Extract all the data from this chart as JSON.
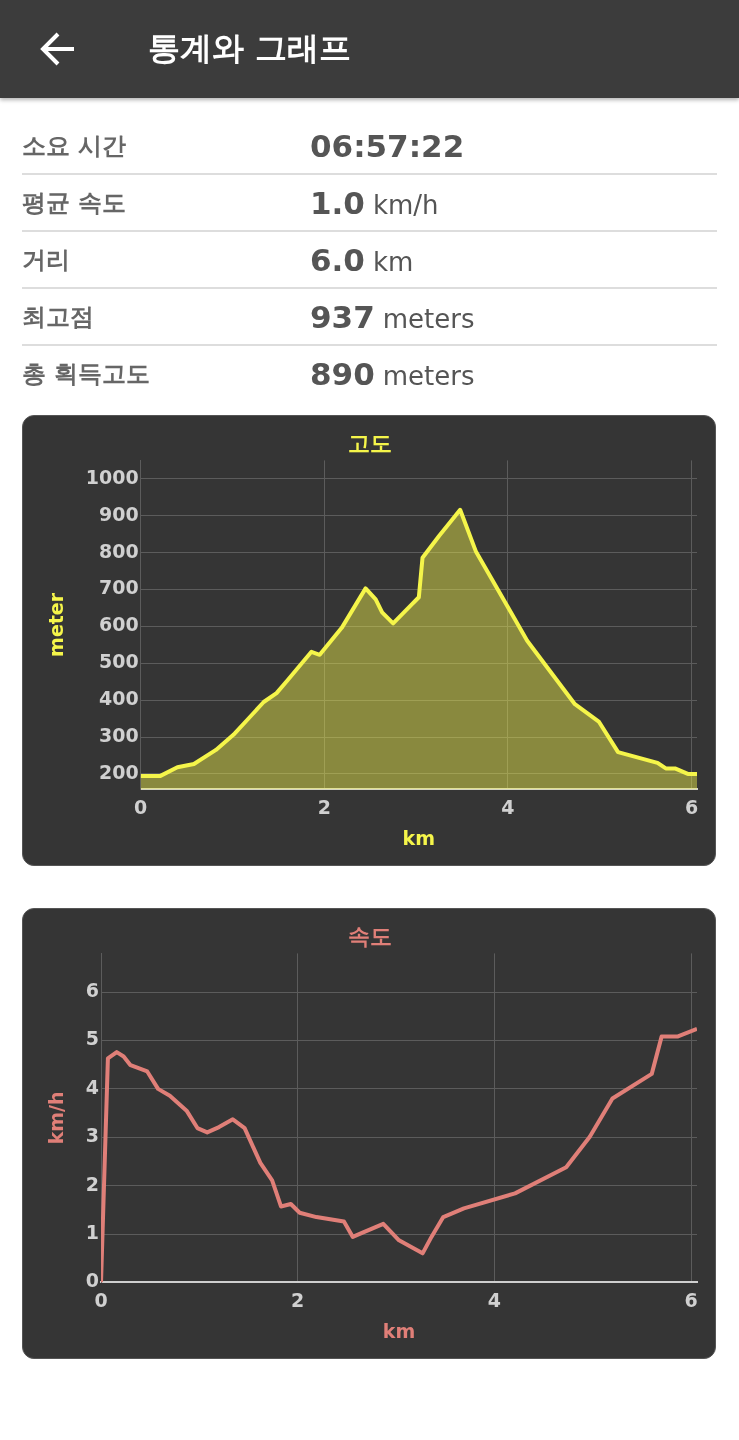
{
  "chart_data": [
    {
      "type": "other",
      "title": "통계와 그래프",
      "annotations": [
        "소요 시간",
        "06:57:22",
        "평균 속도",
        "1.0 km/h",
        "거리",
        "6.0 km",
        "최고점",
        "937 meters",
        "총 획득고도",
        "890 meters"
      ]
    },
    {
      "type": "area",
      "title": "고도",
      "xlabel": "km",
      "ylabel": "meter",
      "xlim": [
        0,
        6.06
      ],
      "xticks": [
        0,
        2,
        4,
        6
      ],
      "ylim": [
        158,
        1050
      ],
      "yticks": [
        200,
        300,
        400,
        500,
        600,
        700,
        800,
        900,
        1000
      ],
      "grid": true,
      "legend": false,
      "marker": "none",
      "x": [
        0,
        0.21,
        0.4,
        0.58,
        0.82,
        1.01,
        1.2,
        1.34,
        1.48,
        1.6,
        1.86,
        1.95,
        2.19,
        2.45,
        2.56,
        2.63,
        2.75,
        2.94,
        3.03,
        3.07,
        3.25,
        3.48,
        3.65,
        4.21,
        4.73,
        4.99,
        5.2,
        5.63,
        5.72,
        5.82,
        5.96,
        6.06
      ],
      "series": [
        {
          "color": "#f5f54a",
          "values": [
            194,
            194,
            218,
            227,
            265,
            306,
            357,
            395,
            419,
            454,
            531,
            523,
            596,
            703,
            673,
            638,
            608,
            656,
            679,
            786,
            845,
            916,
            804,
            561,
            389,
            342,
            259,
            230,
            215,
            215,
            200,
            200
          ]
        }
      ]
    },
    {
      "type": "line",
      "title": "속도",
      "xlabel": "km",
      "ylabel": "km/h",
      "xlim": [
        0,
        6.06
      ],
      "xticks": [
        0,
        2,
        4,
        6
      ],
      "ylim": [
        0,
        6.8
      ],
      "yticks": [
        0,
        1,
        2,
        3,
        4,
        5,
        6
      ],
      "grid": true,
      "legend": false,
      "marker": "none",
      "x": [
        0,
        0.07,
        0.16,
        0.23,
        0.3,
        0.47,
        0.58,
        0.7,
        0.87,
        0.98,
        1.08,
        1.2,
        1.34,
        1.46,
        1.62,
        1.74,
        1.83,
        1.93,
        2.02,
        2.19,
        2.47,
        2.56,
        2.66,
        2.87,
        3.03,
        3.27,
        3.36,
        3.48,
        3.69,
        4.21,
        4.73,
        4.97,
        5.2,
        5.6,
        5.7,
        5.79,
        5.86,
        6.06
      ],
      "series": [
        {
          "color": "#e07f78",
          "values": [
            0,
            4.63,
            4.76,
            4.67,
            4.49,
            4.36,
            4.0,
            3.86,
            3.55,
            3.19,
            3.1,
            3.21,
            3.37,
            3.19,
            2.47,
            2.11,
            1.57,
            1.62,
            1.44,
            1.35,
            1.26,
            0.94,
            1.03,
            1.21,
            0.87,
            0.6,
            0.94,
            1.35,
            1.53,
            1.84,
            2.38,
            3.01,
            3.8,
            4.31,
            5.08,
            5.08,
            5.08,
            5.24
          ]
        }
      ]
    }
  ]
}
